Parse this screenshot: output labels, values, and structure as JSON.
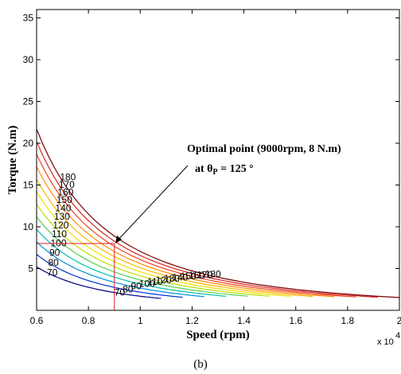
{
  "chart_data": {
    "type": "contour",
    "xlabel": "Speed (rpm)",
    "ylabel": "Torque (N.m)",
    "x_multiplier_label": "x 10",
    "x_multiplier_exponent": "4",
    "xlim": [
      0.6,
      2.0
    ],
    "ylim": [
      0,
      36
    ],
    "x_ticks": [
      0.6,
      0.8,
      1,
      1.2,
      1.4,
      1.6,
      1.8,
      2
    ],
    "x_tick_labels": [
      "0.6",
      "0.8",
      "1",
      "1.2",
      "1.4",
      "1.6",
      "1.8",
      "2"
    ],
    "y_ticks": [
      5,
      10,
      15,
      20,
      25,
      30,
      35
    ],
    "y_tick_labels": [
      "5",
      "10",
      "15",
      "20",
      "25",
      "30",
      "35"
    ],
    "grid": false,
    "levels": [
      {
        "level": 180,
        "label": "180",
        "color": "#7a0000"
      },
      {
        "level": 170,
        "label": "170",
        "color": "#d62020"
      },
      {
        "level": 160,
        "label": "160",
        "color": "#f04020"
      },
      {
        "level": 150,
        "label": "150",
        "color": "#ff8a00"
      },
      {
        "level": 140,
        "label": "140",
        "color": "#ffb400"
      },
      {
        "level": 130,
        "label": "130",
        "color": "#f0e000"
      },
      {
        "level": 120,
        "label": "120",
        "color": "#b8e000"
      },
      {
        "level": 110,
        "label": "110",
        "color": "#50d050"
      },
      {
        "level": 100,
        "label": "100",
        "color": "#00c0b0"
      },
      {
        "level": 90,
        "label": "90",
        "color": "#0090e0"
      },
      {
        "level": 80,
        "label": "80",
        "color": "#0030d0"
      },
      {
        "level": 70,
        "label": "70",
        "color": "#000080"
      }
    ],
    "optimal_point": {
      "x": 0.9,
      "y": 8
    },
    "annotation_line1": "Optimal point (9000rpm, 8 N.m)",
    "annotation_line2_prefix": "at  θ",
    "annotation_subscript": "P",
    "annotation_line2_suffix": "  = 125 °",
    "caption": "(b)"
  }
}
